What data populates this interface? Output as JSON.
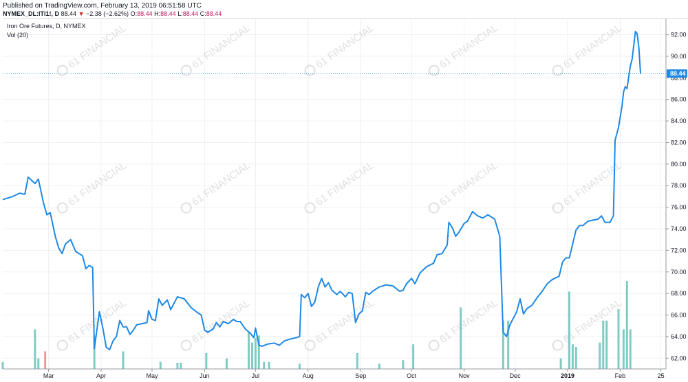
{
  "header": {
    "published": "Published on TradingView.com, February 13, 2019 06:51:58 UTC",
    "symbol": "NYMEX_DL:ITI1!, D",
    "last": "88.44",
    "change": "−2.38 (−2.62%)",
    "o_label": "O:",
    "o_value": "88.44",
    "h_label": "H:",
    "h_value": "88.44",
    "l_label": "L:",
    "l_value": "88.44",
    "c_label": "C:",
    "c_value": "88.44"
  },
  "legend": {
    "title": "Iron Ore Futures, D, NYMEX",
    "volume": "Vol (20)"
  },
  "watermark": "61 FINANCIAL",
  "colors": {
    "line": "#1e88e5",
    "volume_up": "#80cbc4",
    "volume_down": "#ef9a9a",
    "grid": "#eef0f3",
    "last_price": "#1e88e5"
  },
  "chart_data": {
    "type": "line",
    "title": "Iron Ore Futures, D, NYMEX",
    "last_price_label": "88.44",
    "ylim": [
      61,
      93.5
    ],
    "y_ticks": [
      62,
      64,
      66,
      68,
      70,
      72,
      74,
      76,
      78,
      80,
      82,
      84,
      86,
      88,
      90,
      92
    ],
    "y_tick_labels": [
      "62.00",
      "64.00",
      "66.00",
      "68.00",
      "70.00",
      "72.00",
      "74.00",
      "76.00",
      "78.00",
      "80.00",
      "82.00",
      "84.00",
      "86.00",
      "88.00",
      "90.00",
      "92.00"
    ],
    "x_ticks": [
      {
        "label": "Mar",
        "date": "2018-03-01"
      },
      {
        "label": "Apr",
        "date": "2018-04-01"
      },
      {
        "label": "May",
        "date": "2018-05-01"
      },
      {
        "label": "Jun",
        "date": "2018-06-01"
      },
      {
        "label": "Jul",
        "date": "2018-07-01"
      },
      {
        "label": "Aug",
        "date": "2018-08-01"
      },
      {
        "label": "Sep",
        "date": "2018-09-01"
      },
      {
        "label": "Oct",
        "date": "2018-10-01"
      },
      {
        "label": "Nov",
        "date": "2018-11-01"
      },
      {
        "label": "Dec",
        "date": "2018-12-01"
      },
      {
        "label": "2019",
        "date": "2019-01-01"
      },
      {
        "label": "Feb",
        "date": "2019-02-01"
      },
      {
        "label": "25",
        "date": "2019-02-25"
      }
    ],
    "x_range": [
      "2018-02-02",
      "2019-02-28"
    ],
    "price_series": [
      [
        "2018-02-02",
        76.7
      ],
      [
        "2018-02-08",
        77.0
      ],
      [
        "2018-02-12",
        77.3
      ],
      [
        "2018-02-15",
        77.2
      ],
      [
        "2018-02-17",
        78.8
      ],
      [
        "2018-02-21",
        78.2
      ],
      [
        "2018-02-23",
        78.6
      ],
      [
        "2018-02-26",
        76.4
      ],
      [
        "2018-02-28",
        75.3
      ],
      [
        "2018-03-02",
        75.5
      ],
      [
        "2018-03-05",
        73.3
      ],
      [
        "2018-03-07",
        72.2
      ],
      [
        "2018-03-09",
        71.7
      ],
      [
        "2018-03-11",
        72.6
      ],
      [
        "2018-03-14",
        73.0
      ],
      [
        "2018-03-17",
        71.9
      ],
      [
        "2018-03-21",
        71.5
      ],
      [
        "2018-03-23",
        70.3
      ],
      [
        "2018-03-25",
        70.6
      ],
      [
        "2018-03-27",
        70.4
      ],
      [
        "2018-03-28",
        62.9
      ],
      [
        "2018-03-31",
        66.3
      ],
      [
        "2018-04-02",
        64.8
      ],
      [
        "2018-04-04",
        63.0
      ],
      [
        "2018-04-06",
        62.8
      ],
      [
        "2018-04-08",
        63.6
      ],
      [
        "2018-04-10",
        64.0
      ],
      [
        "2018-04-12",
        65.5
      ],
      [
        "2018-04-14",
        64.9
      ],
      [
        "2018-04-16",
        64.9
      ],
      [
        "2018-04-18",
        64.2
      ],
      [
        "2018-04-20",
        64.6
      ],
      [
        "2018-04-22",
        65.1
      ],
      [
        "2018-04-25",
        65.2
      ],
      [
        "2018-04-28",
        65.3
      ],
      [
        "2018-04-29",
        66.4
      ],
      [
        "2018-05-01",
        65.6
      ],
      [
        "2018-05-03",
        65.5
      ],
      [
        "2018-05-05",
        67.5
      ],
      [
        "2018-05-07",
        66.9
      ],
      [
        "2018-05-10",
        67.4
      ],
      [
        "2018-05-12",
        66.5
      ],
      [
        "2018-05-14",
        67.1
      ],
      [
        "2018-05-16",
        67.7
      ],
      [
        "2018-05-20",
        67.5
      ],
      [
        "2018-05-24",
        66.7
      ],
      [
        "2018-05-28",
        66.2
      ],
      [
        "2018-05-30",
        66.0
      ],
      [
        "2018-06-01",
        64.6
      ],
      [
        "2018-06-03",
        64.4
      ],
      [
        "2018-06-06",
        64.7
      ],
      [
        "2018-06-08",
        65.3
      ],
      [
        "2018-06-10",
        64.9
      ],
      [
        "2018-06-12",
        65.4
      ],
      [
        "2018-06-15",
        65.2
      ],
      [
        "2018-06-18",
        65.6
      ],
      [
        "2018-06-20",
        65.4
      ],
      [
        "2018-06-22",
        65.4
      ],
      [
        "2018-06-25",
        64.7
      ],
      [
        "2018-06-28",
        64.3
      ],
      [
        "2018-06-30",
        63.9
      ],
      [
        "2018-07-01",
        64.8
      ],
      [
        "2018-07-03",
        63.2
      ],
      [
        "2018-07-05",
        63.1
      ],
      [
        "2018-07-08",
        63.3
      ],
      [
        "2018-07-12",
        63.4
      ],
      [
        "2018-07-15",
        63.2
      ],
      [
        "2018-07-18",
        63.6
      ],
      [
        "2018-07-22",
        63.8
      ],
      [
        "2018-07-25",
        63.9
      ],
      [
        "2018-07-27",
        64.0
      ],
      [
        "2018-07-28",
        67.9
      ],
      [
        "2018-07-30",
        67.6
      ],
      [
        "2018-08-01",
        68.0
      ],
      [
        "2018-08-03",
        66.8
      ],
      [
        "2018-08-05",
        67.2
      ],
      [
        "2018-08-07",
        68.6
      ],
      [
        "2018-08-09",
        69.4
      ],
      [
        "2018-08-11",
        68.6
      ],
      [
        "2018-08-13",
        69.0
      ],
      [
        "2018-08-15",
        68.3
      ],
      [
        "2018-08-18",
        67.9
      ],
      [
        "2018-08-20",
        68.2
      ],
      [
        "2018-08-23",
        67.7
      ],
      [
        "2018-08-25",
        68.1
      ],
      [
        "2018-08-27",
        68.0
      ],
      [
        "2018-08-29",
        65.3
      ],
      [
        "2018-08-31",
        66.1
      ],
      [
        "2018-09-02",
        66.4
      ],
      [
        "2018-09-04",
        68.1
      ],
      [
        "2018-09-06",
        67.9
      ],
      [
        "2018-09-08",
        68.2
      ],
      [
        "2018-09-12",
        68.6
      ],
      [
        "2018-09-16",
        68.8
      ],
      [
        "2018-09-20",
        68.7
      ],
      [
        "2018-09-24",
        68.2
      ],
      [
        "2018-09-26",
        68.3
      ],
      [
        "2018-09-28",
        68.9
      ],
      [
        "2018-10-01",
        69.4
      ],
      [
        "2018-10-03",
        68.9
      ],
      [
        "2018-10-06",
        69.9
      ],
      [
        "2018-10-08",
        70.2
      ],
      [
        "2018-10-10",
        70.5
      ],
      [
        "2018-10-14",
        70.8
      ],
      [
        "2018-10-16",
        71.6
      ],
      [
        "2018-10-19",
        71.7
      ],
      [
        "2018-10-22",
        72.5
      ],
      [
        "2018-10-23",
        74.6
      ],
      [
        "2018-10-25",
        74.1
      ],
      [
        "2018-10-27",
        73.3
      ],
      [
        "2018-10-29",
        73.7
      ],
      [
        "2018-11-01",
        74.5
      ],
      [
        "2018-11-03",
        74.7
      ],
      [
        "2018-11-06",
        75.6
      ],
      [
        "2018-11-09",
        75.2
      ],
      [
        "2018-11-12",
        75.0
      ],
      [
        "2018-11-15",
        75.3
      ],
      [
        "2018-11-19",
        74.9
      ],
      [
        "2018-11-22",
        73.3
      ],
      [
        "2018-11-24",
        64.4
      ],
      [
        "2018-11-26",
        64.0
      ],
      [
        "2018-11-28",
        65.1
      ],
      [
        "2018-12-02",
        66.3
      ],
      [
        "2018-12-04",
        67.5
      ],
      [
        "2018-12-06",
        66.1
      ],
      [
        "2018-12-08",
        66.6
      ],
      [
        "2018-12-11",
        66.9
      ],
      [
        "2018-12-14",
        67.6
      ],
      [
        "2018-12-17",
        68.2
      ],
      [
        "2018-12-20",
        68.9
      ],
      [
        "2018-12-23",
        69.3
      ],
      [
        "2018-12-27",
        69.6
      ],
      [
        "2018-12-29",
        70.9
      ],
      [
        "2018-12-31",
        71.3
      ],
      [
        "2019-01-02",
        71.3
      ],
      [
        "2019-01-04",
        72.6
      ],
      [
        "2019-01-06",
        73.9
      ],
      [
        "2019-01-08",
        74.3
      ],
      [
        "2019-01-10",
        74.3
      ],
      [
        "2019-01-13",
        74.7
      ],
      [
        "2019-01-16",
        74.8
      ],
      [
        "2019-01-19",
        74.9
      ],
      [
        "2019-01-21",
        75.2
      ],
      [
        "2019-01-23",
        74.6
      ],
      [
        "2019-01-26",
        74.6
      ],
      [
        "2019-01-28",
        75.2
      ],
      [
        "2019-01-29",
        82.2
      ],
      [
        "2019-01-31",
        83.4
      ],
      [
        "2019-02-02",
        85.3
      ],
      [
        "2019-02-03",
        86.7
      ],
      [
        "2019-02-04",
        87.2
      ],
      [
        "2019-02-05",
        87.0
      ],
      [
        "2019-02-07",
        89.1
      ],
      [
        "2019-02-08",
        89.7
      ],
      [
        "2019-02-10",
        92.3
      ],
      [
        "2019-02-11",
        92.1
      ],
      [
        "2019-02-12",
        90.8
      ],
      [
        "2019-02-13",
        88.4
      ]
    ],
    "volume_bars": [
      {
        "date": "2018-02-02",
        "h": 0.08,
        "color": "up"
      },
      {
        "date": "2018-02-21",
        "h": 0.45,
        "color": "up"
      },
      {
        "date": "2018-02-23",
        "h": 0.12,
        "color": "up"
      },
      {
        "date": "2018-02-27",
        "h": 0.2,
        "color": "down"
      },
      {
        "date": "2018-03-28",
        "h": 0.38,
        "color": "up"
      },
      {
        "date": "2018-04-14",
        "h": 0.2,
        "color": "up"
      },
      {
        "date": "2018-05-06",
        "h": 0.08,
        "color": "up"
      },
      {
        "date": "2018-05-16",
        "h": 0.07,
        "color": "up"
      },
      {
        "date": "2018-05-18",
        "h": 0.07,
        "color": "up"
      },
      {
        "date": "2018-06-02",
        "h": 0.18,
        "color": "up"
      },
      {
        "date": "2018-06-14",
        "h": 0.12,
        "color": "up"
      },
      {
        "date": "2018-06-27",
        "h": 0.42,
        "color": "up"
      },
      {
        "date": "2018-06-29",
        "h": 0.3,
        "color": "up"
      },
      {
        "date": "2018-07-01",
        "h": 0.35,
        "color": "up"
      },
      {
        "date": "2018-07-03",
        "h": 0.38,
        "color": "up"
      },
      {
        "date": "2018-07-06",
        "h": 0.08,
        "color": "up"
      },
      {
        "date": "2018-07-09",
        "h": 0.08,
        "color": "up"
      },
      {
        "date": "2018-07-27",
        "h": 0.06,
        "color": "up"
      },
      {
        "date": "2018-08-30",
        "h": 0.18,
        "color": "up"
      },
      {
        "date": "2018-09-12",
        "h": 0.06,
        "color": "up"
      },
      {
        "date": "2018-09-26",
        "h": 0.1,
        "color": "up"
      },
      {
        "date": "2018-10-02",
        "h": 0.28,
        "color": "up"
      },
      {
        "date": "2018-10-30",
        "h": 0.7,
        "color": "up"
      },
      {
        "date": "2018-11-24",
        "h": 0.55,
        "color": "up"
      },
      {
        "date": "2018-11-27",
        "h": 0.55,
        "color": "up"
      },
      {
        "date": "2018-12-28",
        "h": 0.12,
        "color": "up"
      },
      {
        "date": "2019-01-02",
        "h": 0.88,
        "color": "up"
      },
      {
        "date": "2019-01-04",
        "h": 0.28,
        "color": "up"
      },
      {
        "date": "2019-01-06",
        "h": 0.25,
        "color": "up"
      },
      {
        "date": "2019-01-20",
        "h": 0.3,
        "color": "up"
      },
      {
        "date": "2019-01-22",
        "h": 0.55,
        "color": "up"
      },
      {
        "date": "2019-01-24",
        "h": 0.55,
        "color": "up"
      },
      {
        "date": "2019-01-31",
        "h": 0.68,
        "color": "up"
      },
      {
        "date": "2019-02-03",
        "h": 0.45,
        "color": "up"
      },
      {
        "date": "2019-02-05",
        "h": 1.0,
        "color": "up"
      },
      {
        "date": "2019-02-07",
        "h": 0.45,
        "color": "up"
      }
    ]
  }
}
